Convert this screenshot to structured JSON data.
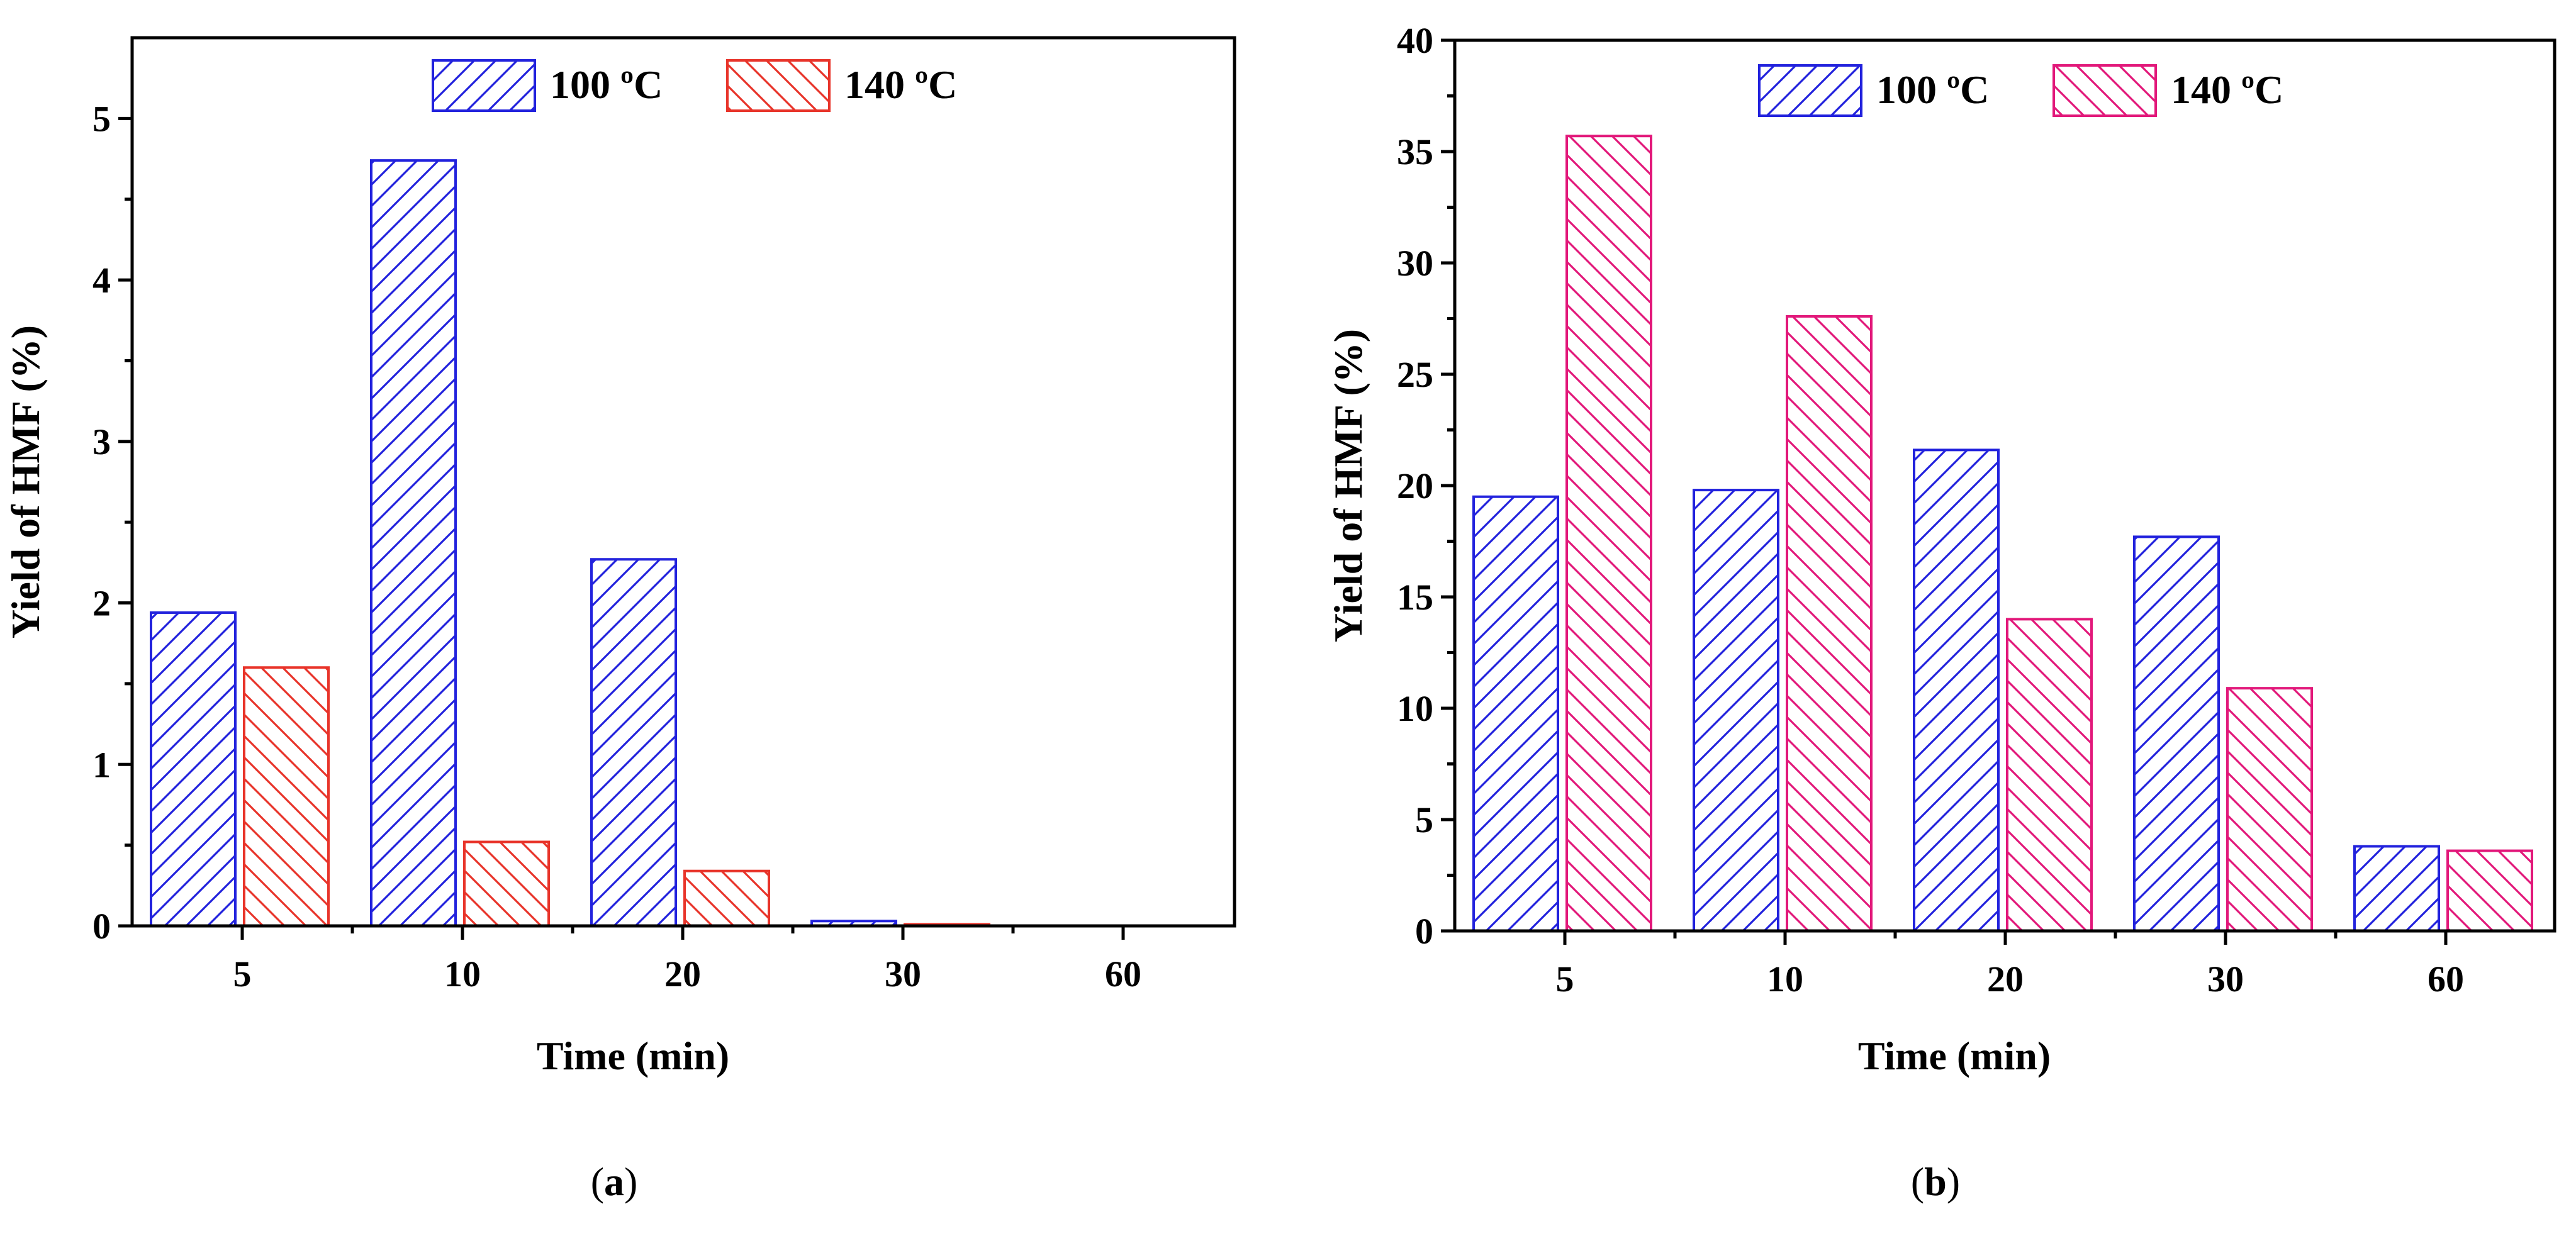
{
  "chart_data": [
    {
      "panel_label": "a",
      "type": "bar",
      "title": "",
      "xlabel": "Time (min)",
      "ylabel": "Yield of HMF (%)",
      "categories": [
        "5",
        "10",
        "20",
        "30",
        "60"
      ],
      "ylim": [
        0,
        5.5
      ],
      "yticks": [
        0,
        1,
        2,
        3,
        4,
        5
      ],
      "legend_position": "top-center",
      "series": [
        {
          "name": "100 ºC",
          "color": "#2222dd",
          "hatch": "forward-diagonal",
          "values": [
            1.94,
            4.74,
            2.27,
            0.03,
            0
          ]
        },
        {
          "name": "140 ºC",
          "color": "#e8342a",
          "hatch": "back-diagonal",
          "values": [
            1.6,
            0.52,
            0.34,
            0.01,
            0
          ]
        }
      ]
    },
    {
      "panel_label": "b",
      "type": "bar",
      "title": "",
      "xlabel": "Time (min)",
      "ylabel": "Yield of HMF (%)",
      "categories": [
        "5",
        "10",
        "20",
        "30",
        "60"
      ],
      "ylim": [
        0,
        40
      ],
      "yticks": [
        0,
        5,
        10,
        15,
        20,
        25,
        30,
        35,
        40
      ],
      "legend_position": "top-center",
      "series": [
        {
          "name": "100 ºC",
          "color": "#2222dd",
          "hatch": "forward-diagonal",
          "values": [
            19.5,
            19.8,
            21.6,
            17.7,
            3.8
          ]
        },
        {
          "name": "140 ºC",
          "color": "#e2187a",
          "hatch": "back-diagonal",
          "values": [
            35.7,
            27.6,
            14.0,
            10.9,
            3.6
          ]
        }
      ]
    }
  ]
}
